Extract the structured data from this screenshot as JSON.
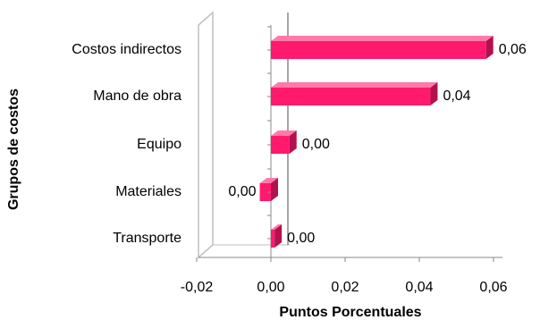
{
  "chart_data": {
    "type": "bar",
    "orientation": "horizontal",
    "title": "",
    "xlabel": "Puntos Porcentuales",
    "ylabel": "Grupos de costos",
    "xlim": [
      -0.02,
      0.06
    ],
    "xticks": [
      "-0,02",
      "0,00",
      "0,02",
      "0,04",
      "0,06"
    ],
    "categories": [
      "Costos indirectos",
      "Mano de obra",
      "Equipo",
      "Materiales",
      "Transporte"
    ],
    "values": [
      0.058,
      0.043,
      0.005,
      -0.003,
      0.001
    ],
    "labels": [
      "0,06",
      "0,04",
      "0,00",
      "0,00",
      "0,00"
    ],
    "bar_color": "#ff1a6e",
    "bar_dark": "#b5104e",
    "bar_light": "#ff7aa8",
    "legend": "none",
    "grid": false
  }
}
